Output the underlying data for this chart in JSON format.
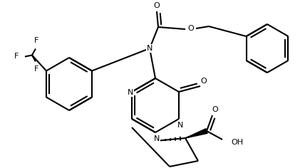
{
  "figsize": [
    4.28,
    2.36
  ],
  "dpi": 100,
  "lw": 1.5,
  "fs": 8.0,
  "xlim": [
    0,
    428
  ],
  "ylim": [
    236,
    0
  ]
}
